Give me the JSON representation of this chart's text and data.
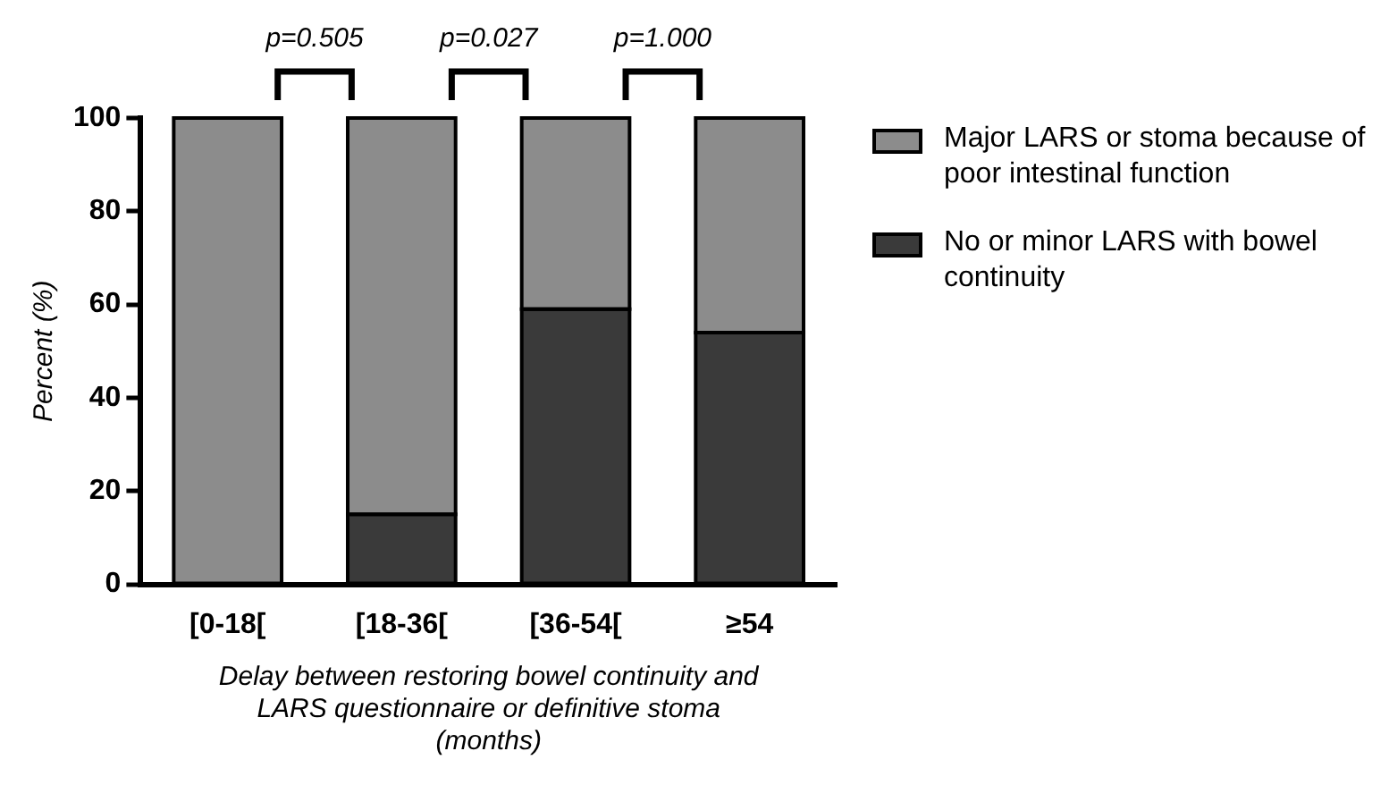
{
  "chart_data": {
    "type": "bar",
    "stacked": true,
    "ylabel": "Percent (%)",
    "xlabel": "Delay between restoring bowel continuity and LARS questionnaire or definitive stoma (months)",
    "categories": [
      "[0-18[",
      "[18-36[",
      "[36-54[",
      "≥54"
    ],
    "series": [
      {
        "name": "No or minor LARS with bowel continuity",
        "color": "#3a3a3a",
        "values": [
          0,
          15,
          59,
          54
        ]
      },
      {
        "name": "Major LARS or stoma because of poor intestinal function",
        "color": "#8c8c8c",
        "values": [
          100,
          85,
          41,
          46
        ]
      }
    ],
    "ylim": [
      0,
      100
    ],
    "yticks": [
      0,
      20,
      40,
      60,
      80,
      100
    ],
    "grid": false,
    "legend": "right",
    "annotations": [
      "p=0.505",
      "p=0.027",
      "p=1.000"
    ]
  }
}
